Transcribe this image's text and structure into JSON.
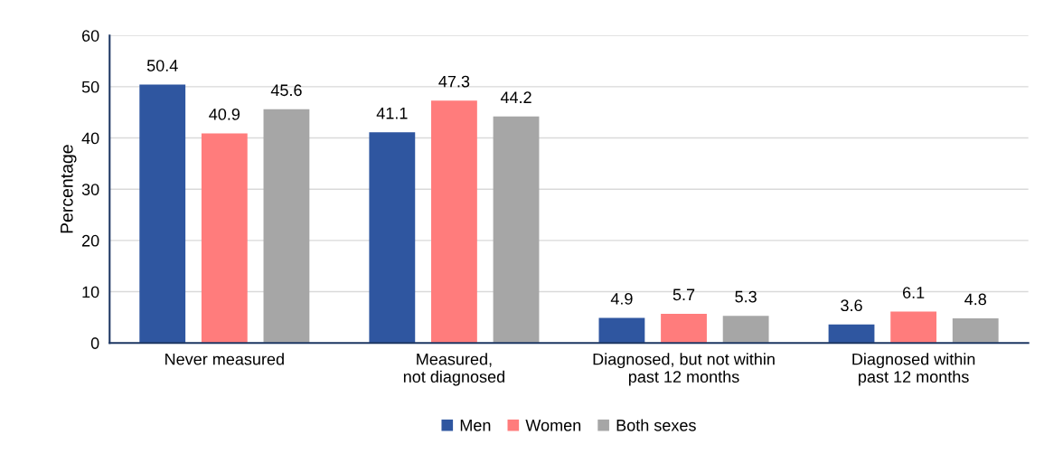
{
  "chart_data": {
    "type": "bar",
    "ylabel": "Percentage",
    "categories": [
      "Never measured",
      "Measured,\nnot diagnosed",
      "Diagnosed, but not within\npast 12 months",
      "Diagnosed within\npast 12 months"
    ],
    "series": [
      {
        "name": "Men",
        "color": "#2f56a0",
        "values": [
          50.4,
          41.1,
          4.9,
          3.6
        ]
      },
      {
        "name": "Women",
        "color": "#ff7c7c",
        "values": [
          40.9,
          47.3,
          5.7,
          6.1
        ]
      },
      {
        "name": "Both sexes",
        "color": "#a6a6a6",
        "values": [
          45.6,
          44.2,
          5.3,
          4.8
        ]
      }
    ],
    "ylim": [
      0,
      60
    ],
    "yticks": [
      0,
      10,
      20,
      30,
      40,
      50,
      60
    ],
    "grid": "y",
    "legend": "bottom",
    "data_labels": true
  }
}
